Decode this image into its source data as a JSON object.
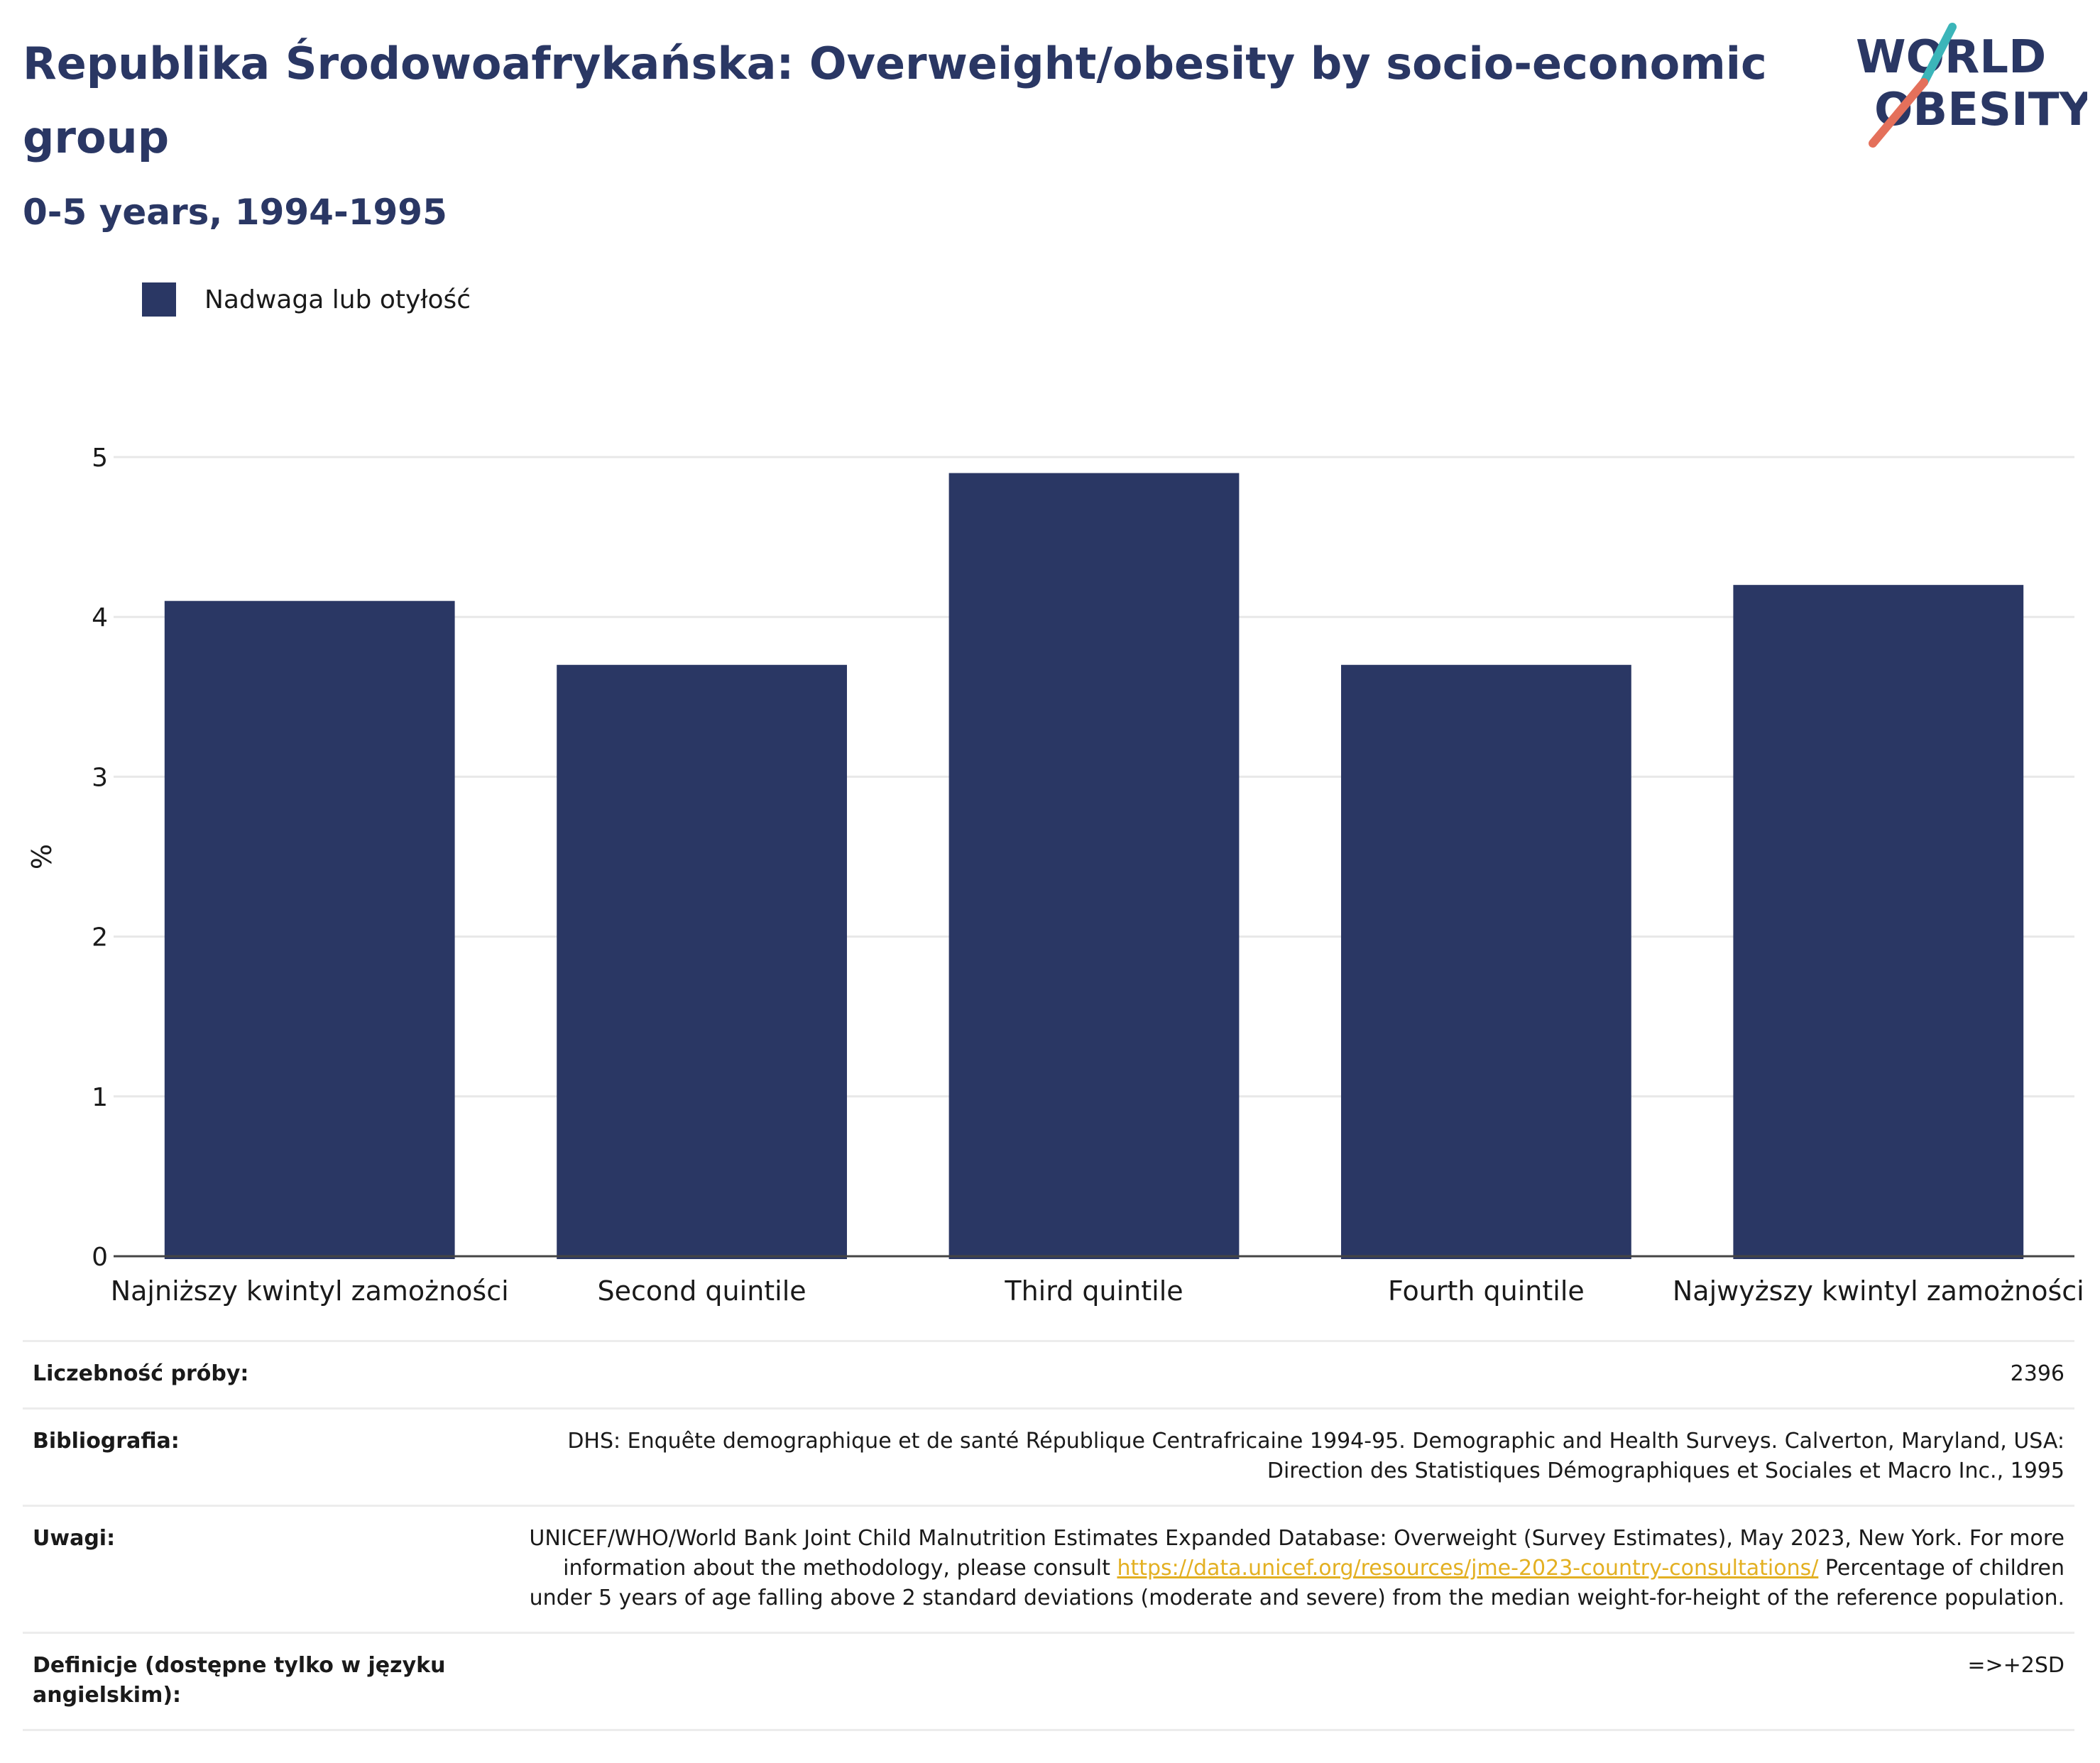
{
  "header": {
    "title": "Republika Środowoafrykańska: Overweight/obesity by socio-economic group",
    "subtitle": "0-5 years, 1994-1995"
  },
  "logo": {
    "line1": "WORLD",
    "line2": "OBESITY",
    "text_color": "#2a3764",
    "accent_teal": "#3bb5b9",
    "accent_coral": "#e4705b"
  },
  "legend": {
    "label": "Nadwaga lub otyłość",
    "color": "#2a3764"
  },
  "chart_data": {
    "type": "bar",
    "categories": [
      "Najniższy kwintyl zamożności",
      "Second quintile",
      "Third quintile",
      "Fourth quintile",
      "Najwyższy kwintyl zamożności"
    ],
    "series": [
      {
        "name": "Nadwaga lub otyłość",
        "values": [
          4.1,
          3.7,
          4.9,
          3.7,
          4.2
        ]
      }
    ],
    "ylabel": "%",
    "ylim": [
      0,
      5
    ],
    "yticks": [
      0,
      1,
      2,
      3,
      4,
      5
    ],
    "grid": true,
    "legend_position": "top-left",
    "bar_color": "#2a3764"
  },
  "info": {
    "sample_size": {
      "label": "Liczebność próby:",
      "value": "2396"
    },
    "bibliography": {
      "label": "Bibliografia:",
      "value": "DHS: Enquête demographique et de santé République Centrafricaine 1994-95. Demographic and Health Surveys. Calverton, Maryland, USA: Direction des Statistiques Démographiques et Sociales et Macro Inc., 1995"
    },
    "notes": {
      "label": "Uwagi:",
      "text_before": "UNICEF/WHO/World Bank Joint Child Malnutrition Estimates Expanded Database: Overweight (Survey Estimates), May 2023, New York. For more information about the methodology, please consult ",
      "link": "https://data.unicef.org/resources/jme-2023-country-consultations/",
      "text_after": " Percentage of children under 5 years of age falling above 2 standard deviations (moderate and severe) from the median weight-for-height of the reference population."
    },
    "definitions": {
      "label": "Definicje (dostępne tylko w języku angielskim):",
      "value": "=>+2SD"
    }
  }
}
